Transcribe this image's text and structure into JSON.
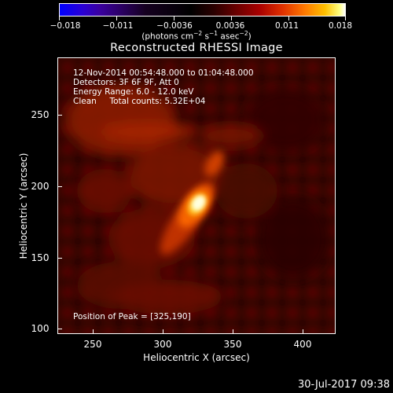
{
  "colorbar": {
    "tick_labels": [
      "−0.018",
      "−0.011",
      "−0.0036",
      "0.0036",
      "0.011",
      "0.018"
    ],
    "units_main": "(photons cm",
    "units_exp1": "−2",
    "units_s": " s",
    "units_exp2": "−1",
    "units_asec": " asec",
    "units_exp3": "−2",
    "units_close": ")"
  },
  "title": "Reconstructed RHESSI Image",
  "info": {
    "time_range": "12-Nov-2014 00:54:48.000 to 01:04:48.000",
    "detectors": "Detectors: 3F 6F 9F, Att 0",
    "energy_range": "Energy Range: 6.0 - 12.0 keV",
    "method_counts": "Clean     Total counts: 5.32E+04",
    "peak_position": "Position of Peak = [325,190]"
  },
  "axes": {
    "xlabel": "Heliocentric X (arcsec)",
    "ylabel": "Heliocentric Y (arcsec)",
    "x_ticks": [
      "250",
      "300",
      "350",
      "400"
    ],
    "y_ticks": [
      "250",
      "200",
      "150",
      "100"
    ]
  },
  "datestamp": "30-Jul-2017 09:38",
  "colors": {
    "background": "#000000",
    "text": "#ffffff",
    "source_peak": "#ffff80",
    "map_base": "#3a0500"
  }
}
